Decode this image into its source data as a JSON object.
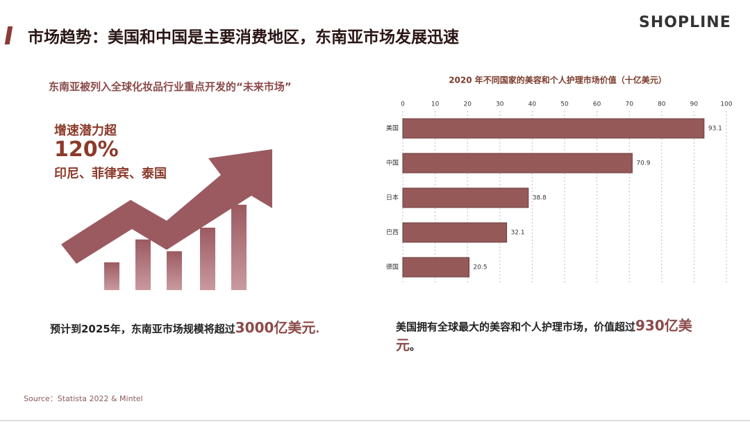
{
  "slide": {
    "title": "市场趋势：美国和中国是主要消费地区，东南亚市场发展迅速",
    "logo": "SHOPLINE",
    "left": {
      "subtitle": "东南亚被列入全球化妆品行业重点开发的“未来市场”",
      "growth_label": "增速潜力超",
      "growth_value": "120%",
      "countries": "印尼、菲律宾、泰国",
      "note_text": "预计到2025年，东南亚市场规模将超过",
      "note_highlight": "3000亿美元",
      "note_end": "."
    },
    "right": {
      "note_text": "美国拥有全球最大的美容和个人护理市场，价值超过",
      "note_highlight": "930亿美元",
      "note_end": "。"
    },
    "source": "Source：Statista 2022 & Mintel"
  },
  "chart_data": {
    "type": "hbar",
    "title": "2020 年不同国家的美容和个人护理市场价值（十亿美元）",
    "categories": [
      "美国",
      "中国",
      "日本",
      "巴西",
      "德国"
    ],
    "values": [
      93.1,
      70.9,
      38.8,
      32.1,
      20.5
    ],
    "color": "#955a58",
    "xlim": [
      0,
      100
    ],
    "xticks": [
      0,
      10,
      20,
      30,
      40,
      50,
      60,
      70,
      80,
      90,
      100
    ],
    "grid": true
  }
}
